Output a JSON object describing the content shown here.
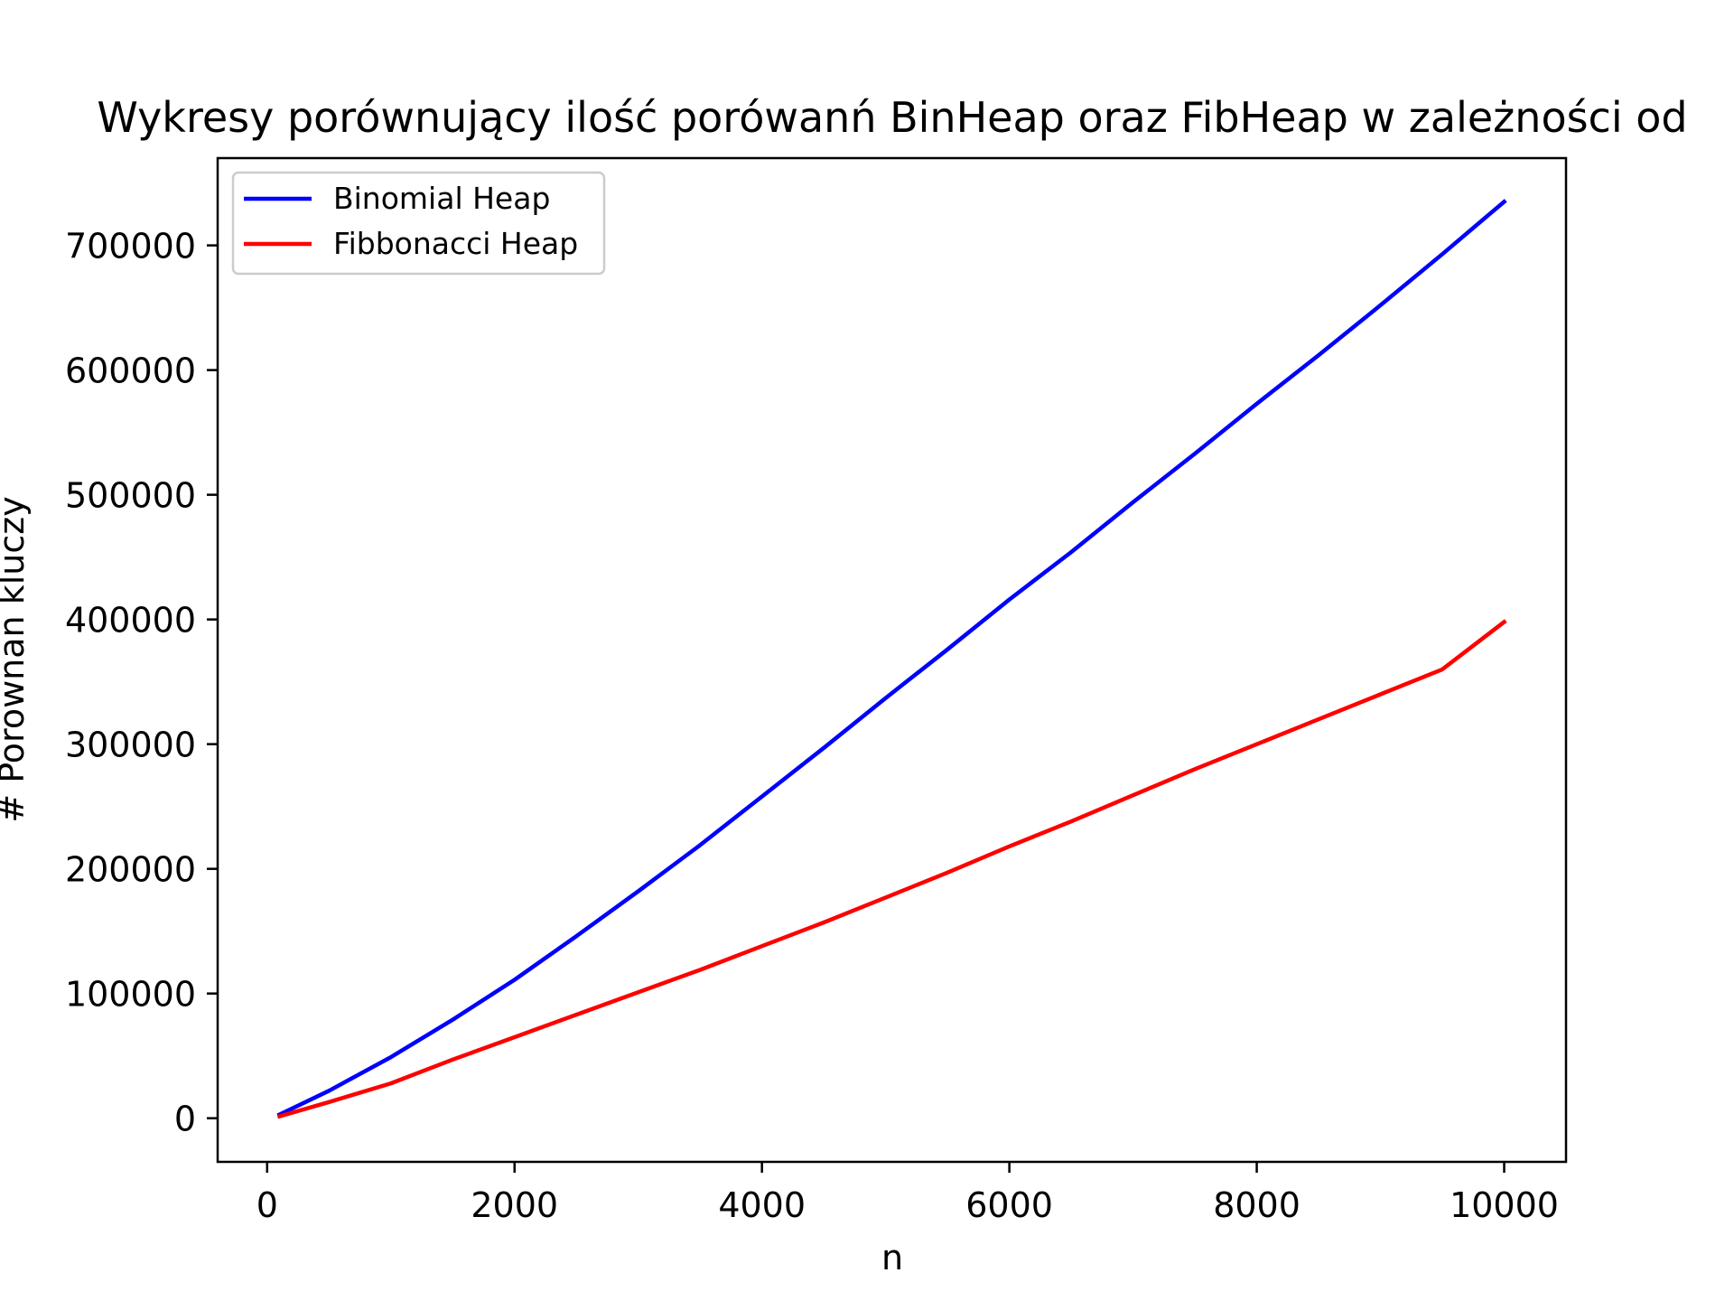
{
  "chart_data": {
    "type": "line",
    "title": "Wykresy porównujący ilość porówanń BinHeap oraz FibHeap w zależności od",
    "xlabel": "n",
    "ylabel": "# Porownan kluczy",
    "xlim": [
      -400,
      10500
    ],
    "ylim": [
      -35000,
      770000
    ],
    "xticks": [
      0,
      2000,
      4000,
      6000,
      8000,
      10000
    ],
    "xtick_labels": [
      "0",
      "2000",
      "4000",
      "6000",
      "8000",
      "10000"
    ],
    "yticks": [
      0,
      100000,
      200000,
      300000,
      400000,
      500000,
      600000,
      700000
    ],
    "ytick_labels": [
      "0",
      "100000",
      "200000",
      "300000",
      "400000",
      "500000",
      "600000",
      "700000"
    ],
    "grid": false,
    "legend_position": "top-left",
    "x": [
      100,
      500,
      1000,
      1500,
      2000,
      2500,
      3000,
      3500,
      4000,
      4500,
      5000,
      5500,
      6000,
      6500,
      7000,
      7500,
      8000,
      8500,
      9000,
      9500,
      10000
    ],
    "series": [
      {
        "name": "Binomial Heap",
        "color": "#0000ff",
        "values": [
          3000,
          22000,
          49000,
          79000,
          111000,
          146000,
          182000,
          219000,
          258000,
          297000,
          337000,
          376000,
          416000,
          454000,
          494000,
          533000,
          573000,
          612000,
          652000,
          693000,
          735000
        ]
      },
      {
        "name": "Fibbonacci Heap",
        "color": "#ff0000",
        "values": [
          1500,
          13000,
          28000,
          47000,
          65000,
          83000,
          101000,
          119000,
          138000,
          157000,
          177000,
          197000,
          218000,
          238000,
          259000,
          280000,
          300000,
          320000,
          340000,
          360000,
          398000
        ]
      }
    ]
  }
}
